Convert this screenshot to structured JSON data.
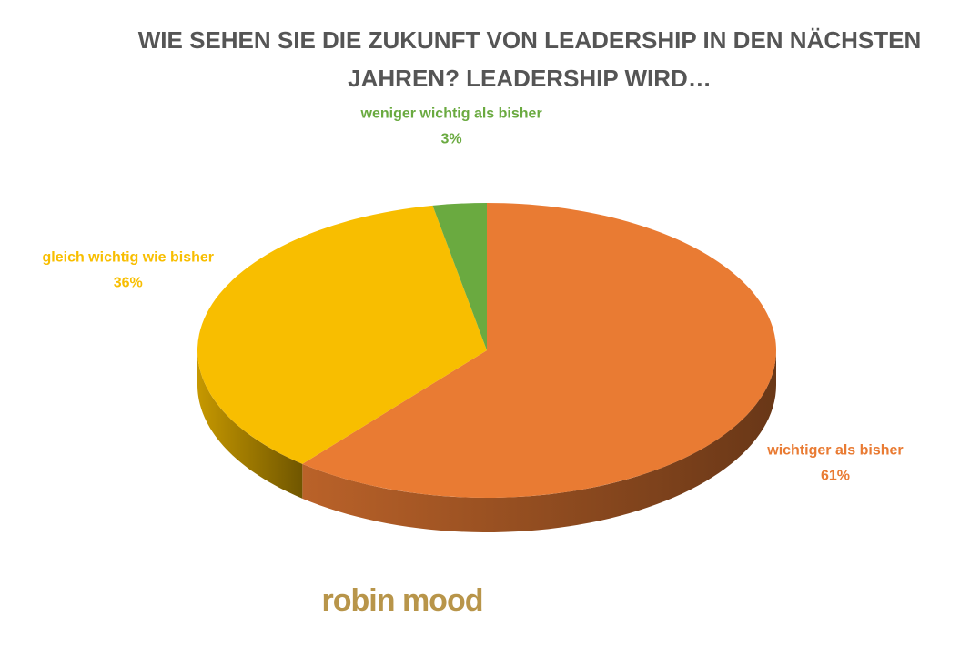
{
  "chart_data": {
    "type": "pie",
    "title": [
      "WIE SEHEN SIE DIE ZUKUNFT VON LEADERSHIP IN DEN NÄCHSTEN",
      "JAHREN? LEADERSHIP WIRD…"
    ],
    "categories": [
      "wichtiger als bisher",
      "gleich wichtig wie bisher",
      "weniger wichtig als bisher"
    ],
    "values": [
      61,
      36,
      3
    ],
    "value_labels": [
      "61%",
      "36%",
      "3%"
    ],
    "colors": [
      "#e97b33",
      "#f8be00",
      "#6aaa40"
    ],
    "three_d": true
  },
  "logo": "robin mood"
}
